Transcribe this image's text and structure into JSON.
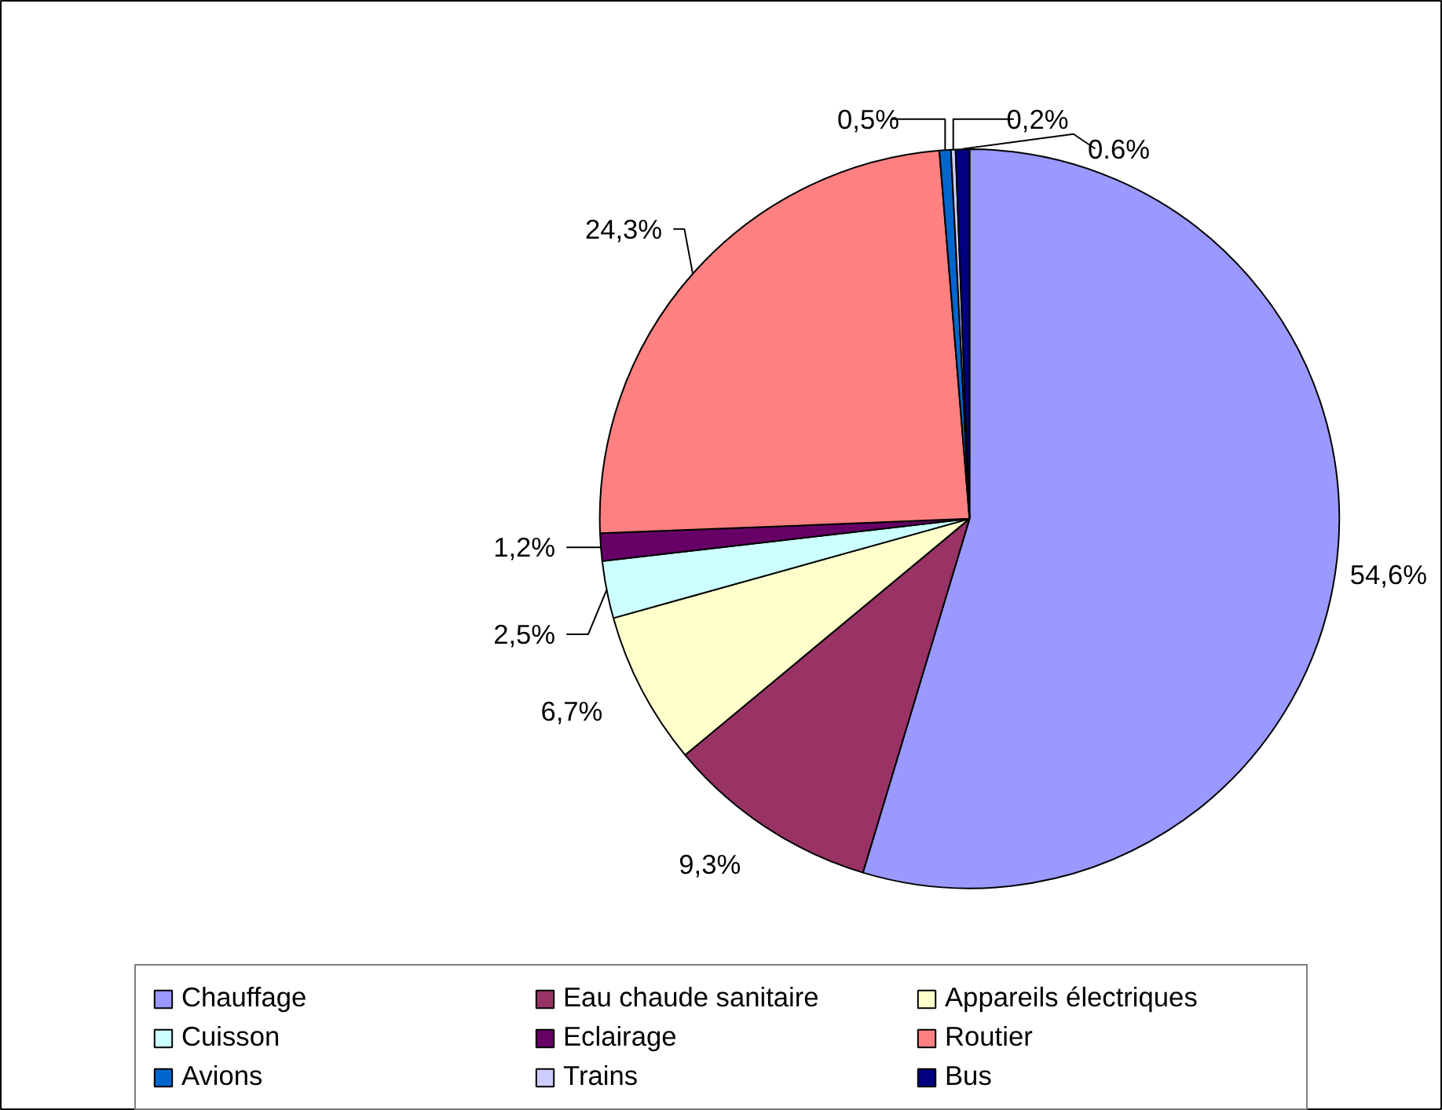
{
  "chart_data": {
    "type": "pie",
    "categories": [
      "Chauffage",
      "Eau chaude sanitaire",
      "Appareils électriques",
      "Cuisson",
      "Eclairage",
      "Routier",
      "Avions",
      "Trains",
      "Bus"
    ],
    "values": [
      54.6,
      9.3,
      6.7,
      2.5,
      1.2,
      24.3,
      0.5,
      0.2,
      0.6
    ],
    "value_labels": [
      "54,6%",
      "9,3%",
      "6,7%",
      "2,5%",
      "1,2%",
      "24,3%",
      "0,5%",
      "0,2%",
      "0.6%"
    ],
    "colors": [
      "#9999ff",
      "#993366",
      "#ffffcc",
      "#ccffff",
      "#660066",
      "#ff8080",
      "#0066cc",
      "#ccccff",
      "#000080"
    ],
    "legend": "bottom"
  }
}
